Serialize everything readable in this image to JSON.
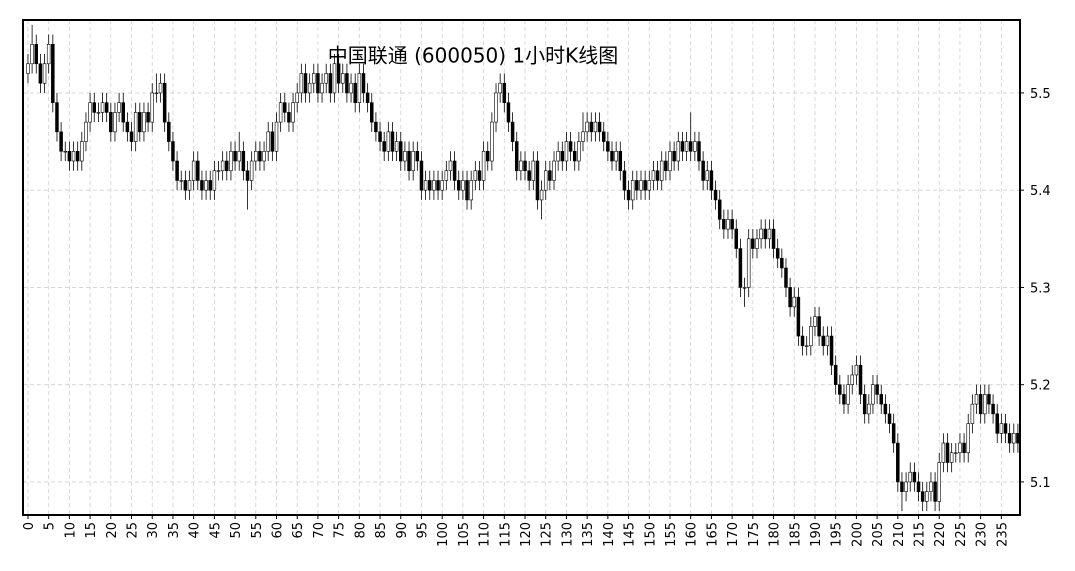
{
  "chart_data": {
    "type": "candlestick",
    "title": "中国联通 (600050) 1小时K线图",
    "x": [
      0,
      1,
      2,
      3,
      4,
      5,
      6,
      7,
      8,
      9,
      10,
      11,
      12,
      13,
      14,
      15,
      16,
      17,
      18,
      19,
      20,
      21,
      22,
      23,
      24,
      25,
      26,
      27,
      28,
      29,
      30,
      31,
      32,
      33,
      34,
      35,
      36,
      37,
      38,
      39,
      40,
      41,
      42,
      43,
      44,
      45,
      46,
      47,
      48,
      49,
      50,
      51,
      52,
      53,
      54,
      55,
      56,
      57,
      58,
      59,
      60,
      61,
      62,
      63,
      64,
      65,
      66,
      67,
      68,
      69,
      70,
      71,
      72,
      73,
      74,
      75,
      76,
      77,
      78,
      79,
      80,
      81,
      82,
      83,
      84,
      85,
      86,
      87,
      88,
      89,
      90,
      91,
      92,
      93,
      94,
      95,
      96,
      97,
      98,
      99,
      100,
      101,
      102,
      103,
      104,
      105,
      106,
      107,
      108,
      109,
      110,
      111,
      112,
      113,
      114,
      115,
      116,
      117,
      118,
      119,
      120,
      121,
      122,
      123,
      124,
      125,
      126,
      127,
      128,
      129,
      130,
      131,
      132,
      133,
      134,
      135,
      136,
      137,
      138,
      139,
      140,
      141,
      142,
      143,
      144,
      145,
      146,
      147,
      148,
      149,
      150,
      151,
      152,
      153,
      154,
      155,
      156,
      157,
      158,
      159,
      160,
      161,
      162,
      163,
      164,
      165,
      166,
      167,
      168,
      169,
      170,
      171,
      172,
      173,
      174,
      175,
      176,
      177,
      178,
      179,
      180,
      181,
      182,
      183,
      184,
      185,
      186,
      187,
      188,
      189,
      190,
      191,
      192,
      193,
      194,
      195,
      196,
      197,
      198,
      199,
      200,
      201,
      202,
      203,
      204,
      205,
      206,
      207,
      208,
      209,
      210,
      211,
      212,
      213,
      214,
      215,
      216,
      217,
      218,
      219,
      220,
      221,
      222,
      223,
      224,
      225,
      226,
      227,
      228,
      229,
      230,
      231,
      232,
      233,
      234,
      235,
      236,
      237,
      238,
      239
    ],
    "open": [
      5.52,
      5.53,
      5.55,
      5.53,
      5.51,
      5.53,
      5.55,
      5.49,
      5.46,
      5.44,
      5.44,
      5.43,
      5.44,
      5.43,
      5.45,
      5.47,
      5.49,
      5.48,
      5.48,
      5.49,
      5.48,
      5.46,
      5.48,
      5.49,
      5.47,
      5.46,
      5.45,
      5.48,
      5.46,
      5.48,
      5.47,
      5.5,
      5.5,
      5.51,
      5.47,
      5.45,
      5.43,
      5.41,
      5.41,
      5.4,
      5.41,
      5.43,
      5.41,
      5.4,
      5.41,
      5.4,
      5.42,
      5.42,
      5.43,
      5.42,
      5.44,
      5.43,
      5.44,
      5.42,
      5.41,
      5.43,
      5.44,
      5.43,
      5.44,
      5.46,
      5.44,
      5.47,
      5.49,
      5.48,
      5.47,
      5.49,
      5.5,
      5.52,
      5.5,
      5.51,
      5.52,
      5.5,
      5.51,
      5.52,
      5.5,
      5.53,
      5.51,
      5.52,
      5.5,
      5.51,
      5.49,
      5.52,
      5.5,
      5.49,
      5.47,
      5.46,
      5.45,
      5.44,
      5.46,
      5.44,
      5.45,
      5.43,
      5.44,
      5.42,
      5.44,
      5.43,
      5.4,
      5.41,
      5.4,
      5.41,
      5.4,
      5.41,
      5.42,
      5.43,
      5.41,
      5.4,
      5.41,
      5.39,
      5.41,
      5.42,
      5.41,
      5.44,
      5.43,
      5.47,
      5.5,
      5.51,
      5.49,
      5.47,
      5.45,
      5.42,
      5.43,
      5.42,
      5.41,
      5.43,
      5.39,
      5.4,
      5.42,
      5.41,
      5.43,
      5.44,
      5.43,
      5.45,
      5.44,
      5.43,
      5.45,
      5.46,
      5.47,
      5.46,
      5.47,
      5.46,
      5.45,
      5.44,
      5.43,
      5.44,
      5.42,
      5.4,
      5.39,
      5.41,
      5.4,
      5.41,
      5.4,
      5.41,
      5.42,
      5.41,
      5.43,
      5.42,
      5.44,
      5.43,
      5.45,
      5.44,
      5.45,
      5.44,
      5.45,
      5.43,
      5.41,
      5.42,
      5.4,
      5.39,
      5.37,
      5.36,
      5.37,
      5.36,
      5.34,
      5.3,
      5.3,
      5.35,
      5.34,
      5.35,
      5.36,
      5.35,
      5.36,
      5.34,
      5.33,
      5.32,
      5.3,
      5.28,
      5.29,
      5.25,
      5.24,
      5.24,
      5.26,
      5.27,
      5.25,
      5.24,
      5.25,
      5.22,
      5.2,
      5.19,
      5.18,
      5.2,
      5.21,
      5.22,
      5.19,
      5.17,
      5.18,
      5.2,
      5.19,
      5.18,
      5.17,
      5.16,
      5.14,
      5.1,
      5.09,
      5.1,
      5.11,
      5.1,
      5.09,
      5.08,
      5.09,
      5.1,
      5.08,
      5.12,
      5.14,
      5.12,
      5.13,
      5.13,
      5.14,
      5.13,
      5.16,
      5.18,
      5.19,
      5.17,
      5.19,
      5.18,
      5.17,
      5.15,
      5.16,
      5.15,
      5.14,
      5.15
    ],
    "high": [
      5.54,
      5.57,
      5.56,
      5.54,
      5.54,
      5.56,
      5.56,
      5.5,
      5.47,
      5.45,
      5.45,
      5.45,
      5.45,
      5.46,
      5.48,
      5.5,
      5.5,
      5.49,
      5.5,
      5.5,
      5.49,
      5.49,
      5.5,
      5.5,
      5.48,
      5.47,
      5.49,
      5.49,
      5.49,
      5.49,
      5.51,
      5.52,
      5.52,
      5.52,
      5.48,
      5.46,
      5.44,
      5.42,
      5.42,
      5.42,
      5.44,
      5.44,
      5.42,
      5.42,
      5.42,
      5.43,
      5.43,
      5.44,
      5.44,
      5.45,
      5.45,
      5.46,
      5.45,
      5.43,
      5.44,
      5.45,
      5.45,
      5.45,
      5.47,
      5.47,
      5.48,
      5.5,
      5.5,
      5.49,
      5.5,
      5.51,
      5.53,
      5.53,
      5.52,
      5.53,
      5.53,
      5.52,
      5.53,
      5.53,
      5.54,
      5.54,
      5.53,
      5.53,
      5.52,
      5.52,
      5.53,
      5.53,
      5.51,
      5.5,
      5.48,
      5.47,
      5.46,
      5.47,
      5.47,
      5.46,
      5.46,
      5.45,
      5.45,
      5.45,
      5.45,
      5.44,
      5.42,
      5.42,
      5.42,
      5.42,
      5.42,
      5.43,
      5.44,
      5.44,
      5.42,
      5.42,
      5.42,
      5.42,
      5.43,
      5.43,
      5.45,
      5.45,
      5.48,
      5.51,
      5.52,
      5.52,
      5.5,
      5.48,
      5.46,
      5.44,
      5.44,
      5.43,
      5.44,
      5.44,
      5.41,
      5.43,
      5.43,
      5.44,
      5.45,
      5.45,
      5.46,
      5.46,
      5.45,
      5.46,
      5.48,
      5.48,
      5.48,
      5.48,
      5.48,
      5.47,
      5.46,
      5.45,
      5.45,
      5.45,
      5.43,
      5.41,
      5.42,
      5.42,
      5.42,
      5.42,
      5.42,
      5.43,
      5.43,
      5.44,
      5.44,
      5.45,
      5.45,
      5.46,
      5.46,
      5.46,
      5.48,
      5.46,
      5.46,
      5.44,
      5.43,
      5.43,
      5.41,
      5.4,
      5.38,
      5.38,
      5.38,
      5.37,
      5.35,
      5.31,
      5.36,
      5.36,
      5.36,
      5.37,
      5.37,
      5.37,
      5.37,
      5.35,
      5.34,
      5.33,
      5.31,
      5.3,
      5.3,
      5.26,
      5.25,
      5.27,
      5.28,
      5.28,
      5.26,
      5.26,
      5.26,
      5.23,
      5.21,
      5.2,
      5.21,
      5.22,
      5.23,
      5.23,
      5.2,
      5.19,
      5.21,
      5.21,
      5.2,
      5.19,
      5.18,
      5.17,
      5.15,
      5.11,
      5.11,
      5.12,
      5.12,
      5.11,
      5.1,
      5.1,
      5.11,
      5.11,
      5.13,
      5.15,
      5.15,
      5.14,
      5.14,
      5.15,
      5.15,
      5.17,
      5.19,
      5.2,
      5.2,
      5.2,
      5.2,
      5.19,
      5.18,
      5.17,
      5.17,
      5.16,
      5.16,
      5.16
    ],
    "low": [
      5.51,
      5.52,
      5.52,
      5.5,
      5.5,
      5.52,
      5.48,
      5.45,
      5.43,
      5.43,
      5.42,
      5.42,
      5.42,
      5.42,
      5.44,
      5.46,
      5.47,
      5.47,
      5.47,
      5.47,
      5.45,
      5.45,
      5.47,
      5.46,
      5.45,
      5.44,
      5.44,
      5.45,
      5.45,
      5.46,
      5.46,
      5.49,
      5.49,
      5.46,
      5.44,
      5.42,
      5.4,
      5.4,
      5.39,
      5.39,
      5.4,
      5.4,
      5.39,
      5.39,
      5.39,
      5.39,
      5.41,
      5.41,
      5.41,
      5.41,
      5.42,
      5.42,
      5.41,
      5.38,
      5.4,
      5.42,
      5.42,
      5.42,
      5.43,
      5.43,
      5.43,
      5.46,
      5.47,
      5.46,
      5.46,
      5.48,
      5.49,
      5.49,
      5.49,
      5.5,
      5.49,
      5.49,
      5.5,
      5.49,
      5.49,
      5.5,
      5.5,
      5.49,
      5.49,
      5.48,
      5.48,
      5.49,
      5.48,
      5.46,
      5.45,
      5.44,
      5.43,
      5.43,
      5.43,
      5.43,
      5.42,
      5.42,
      5.41,
      5.41,
      5.42,
      5.39,
      5.39,
      5.39,
      5.39,
      5.39,
      5.39,
      5.4,
      5.41,
      5.4,
      5.39,
      5.39,
      5.38,
      5.38,
      5.4,
      5.4,
      5.4,
      5.42,
      5.42,
      5.46,
      5.49,
      5.48,
      5.46,
      5.44,
      5.41,
      5.41,
      5.41,
      5.4,
      5.4,
      5.38,
      5.37,
      5.39,
      5.4,
      5.4,
      5.42,
      5.42,
      5.42,
      5.43,
      5.42,
      5.42,
      5.44,
      5.45,
      5.45,
      5.45,
      5.45,
      5.44,
      5.43,
      5.42,
      5.42,
      5.41,
      5.39,
      5.38,
      5.38,
      5.39,
      5.39,
      5.39,
      5.39,
      5.4,
      5.4,
      5.4,
      5.41,
      5.41,
      5.42,
      5.42,
      5.43,
      5.43,
      5.43,
      5.43,
      5.42,
      5.4,
      5.4,
      5.39,
      5.38,
      5.36,
      5.35,
      5.35,
      5.35,
      5.33,
      5.29,
      5.28,
      5.29,
      5.33,
      5.33,
      5.34,
      5.34,
      5.34,
      5.33,
      5.32,
      5.31,
      5.29,
      5.27,
      5.27,
      5.24,
      5.23,
      5.23,
      5.23,
      5.25,
      5.24,
      5.23,
      5.23,
      5.21,
      5.19,
      5.18,
      5.17,
      5.17,
      5.19,
      5.2,
      5.18,
      5.16,
      5.16,
      5.17,
      5.18,
      5.17,
      5.16,
      5.15,
      5.13,
      5.09,
      5.07,
      5.08,
      5.09,
      5.09,
      5.08,
      5.07,
      5.07,
      5.08,
      5.07,
      5.07,
      5.11,
      5.11,
      5.11,
      5.12,
      5.12,
      5.12,
      5.12,
      5.15,
      5.17,
      5.16,
      5.16,
      5.17,
      5.16,
      5.14,
      5.14,
      5.14,
      5.13,
      5.13,
      5.13
    ],
    "close": [
      5.53,
      5.55,
      5.53,
      5.51,
      5.53,
      5.55,
      5.49,
      5.46,
      5.44,
      5.44,
      5.43,
      5.44,
      5.43,
      5.45,
      5.47,
      5.49,
      5.48,
      5.48,
      5.49,
      5.48,
      5.46,
      5.48,
      5.49,
      5.47,
      5.46,
      5.45,
      5.48,
      5.46,
      5.48,
      5.47,
      5.5,
      5.5,
      5.51,
      5.47,
      5.45,
      5.43,
      5.41,
      5.41,
      5.4,
      5.41,
      5.43,
      5.41,
      5.4,
      5.41,
      5.4,
      5.42,
      5.42,
      5.43,
      5.42,
      5.44,
      5.43,
      5.44,
      5.42,
      5.41,
      5.43,
      5.44,
      5.43,
      5.44,
      5.46,
      5.44,
      5.47,
      5.49,
      5.48,
      5.47,
      5.49,
      5.5,
      5.52,
      5.5,
      5.51,
      5.52,
      5.5,
      5.51,
      5.52,
      5.5,
      5.53,
      5.51,
      5.52,
      5.5,
      5.51,
      5.49,
      5.52,
      5.5,
      5.49,
      5.47,
      5.46,
      5.45,
      5.44,
      5.46,
      5.44,
      5.45,
      5.43,
      5.44,
      5.42,
      5.44,
      5.43,
      5.4,
      5.41,
      5.4,
      5.41,
      5.4,
      5.41,
      5.42,
      5.43,
      5.41,
      5.4,
      5.41,
      5.39,
      5.41,
      5.42,
      5.41,
      5.44,
      5.43,
      5.47,
      5.5,
      5.51,
      5.49,
      5.47,
      5.45,
      5.42,
      5.43,
      5.42,
      5.41,
      5.43,
      5.39,
      5.4,
      5.42,
      5.41,
      5.43,
      5.44,
      5.43,
      5.45,
      5.44,
      5.43,
      5.45,
      5.46,
      5.47,
      5.46,
      5.47,
      5.46,
      5.45,
      5.44,
      5.43,
      5.44,
      5.42,
      5.4,
      5.39,
      5.41,
      5.4,
      5.41,
      5.4,
      5.41,
      5.42,
      5.41,
      5.43,
      5.42,
      5.44,
      5.43,
      5.45,
      5.44,
      5.45,
      5.44,
      5.45,
      5.43,
      5.41,
      5.42,
      5.4,
      5.39,
      5.37,
      5.36,
      5.37,
      5.36,
      5.34,
      5.3,
      5.3,
      5.35,
      5.34,
      5.35,
      5.36,
      5.35,
      5.36,
      5.34,
      5.33,
      5.32,
      5.3,
      5.28,
      5.29,
      5.25,
      5.24,
      5.24,
      5.26,
      5.27,
      5.25,
      5.24,
      5.25,
      5.22,
      5.2,
      5.19,
      5.18,
      5.2,
      5.21,
      5.22,
      5.19,
      5.17,
      5.18,
      5.2,
      5.19,
      5.18,
      5.17,
      5.16,
      5.14,
      5.1,
      5.09,
      5.1,
      5.11,
      5.1,
      5.09,
      5.08,
      5.09,
      5.1,
      5.08,
      5.12,
      5.14,
      5.12,
      5.13,
      5.13,
      5.14,
      5.13,
      5.16,
      5.18,
      5.19,
      5.17,
      5.19,
      5.18,
      5.17,
      5.15,
      5.16,
      5.15,
      5.14,
      5.15,
      5.14
    ],
    "color_up": "#ffffff",
    "color_down": "#000000",
    "edge_color": "#000000",
    "xlim": [
      -1.2,
      239.5
    ],
    "ylim": [
      5.066,
      5.575
    ],
    "xticks": [
      0,
      5,
      10,
      15,
      20,
      25,
      30,
      35,
      40,
      45,
      50,
      55,
      60,
      65,
      70,
      75,
      80,
      85,
      90,
      95,
      100,
      105,
      110,
      115,
      120,
      125,
      130,
      135,
      140,
      145,
      150,
      155,
      160,
      165,
      170,
      175,
      180,
      185,
      190,
      195,
      200,
      205,
      210,
      215,
      220,
      225,
      230,
      235
    ],
    "yticks": [
      5.1,
      5.2,
      5.3,
      5.4,
      5.5
    ],
    "y_axis_side": "right",
    "grid": true
  }
}
